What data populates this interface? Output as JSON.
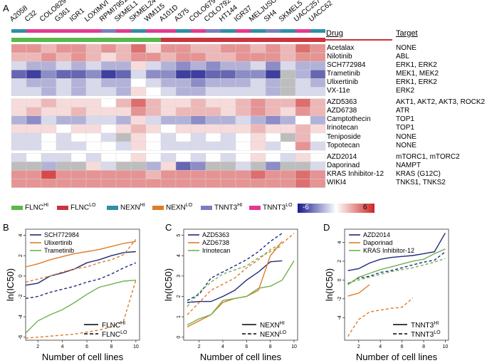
{
  "figure": {
    "panel_a": "A",
    "panel_b": "B",
    "panel_c": "C",
    "panel_d": "D"
  },
  "heatmap": {
    "cell_lines": [
      "A2058",
      "C32",
      "COLO829",
      "G361",
      "IGR1",
      "LOXIMVI",
      "RPMI7951",
      "SKMEL1",
      "SKMEL24",
      "WM115",
      "A101D",
      "A375",
      "COLO679",
      "COLO792",
      "HT144",
      "IGR37",
      "MELJUSO",
      "SH4",
      "SKMEL5",
      "UACC257",
      "UACC62"
    ],
    "drug_header": "Drug",
    "target_header": "Target",
    "group_colors": [
      "#2f8fa6",
      "#e5388e",
      "#e5388e",
      "#e5388e",
      "#e5388e",
      "#e5388e",
      "#7a7ec0",
      "#e5388e",
      "#2f8fa6",
      "#e5388e",
      "#e5388e",
      "#2f8fa6",
      "#e5388e",
      "#7a7ec0",
      "#2f8fa6",
      "#e5388e",
      "#2f8fa6",
      "#7a7ec0",
      "#2f8fa6",
      "#e5388e",
      "#2f8fa6"
    ],
    "flnc_colors": [
      "#59b849",
      "#59b849",
      "#59b849",
      "#59b849",
      "#59b849",
      "#59b849",
      "#59b849",
      "#59b849",
      "#59b849",
      "#59b849",
      "#c8343f",
      "#c8343f",
      "#c8343f",
      "#c8343f",
      "#c8343f",
      "#c8343f",
      "#c8343f",
      "#c8343f",
      "#c8343f",
      "#c8343f",
      "#c8343f"
    ],
    "rows": [
      {
        "drug": "Acetalax",
        "target": "NONE",
        "values": [
          3,
          3,
          2,
          3,
          3,
          2,
          3,
          2,
          4,
          1,
          3,
          3,
          2,
          2,
          3,
          3,
          2,
          3,
          2,
          4,
          3
        ]
      },
      {
        "drug": "Nilotinib",
        "target": "ABL",
        "values": [
          2,
          2,
          3,
          2,
          3,
          2,
          1,
          2,
          3,
          3,
          2,
          3,
          3,
          2,
          2,
          3,
          3,
          3,
          2,
          3,
          3
        ]
      },
      {
        "drug": "SCH772984",
        "target": "ERK1, ERK2",
        "values": [
          -1,
          -2,
          -2,
          -1,
          -2,
          -1,
          -2,
          -2,
          1,
          -1,
          -2,
          -3,
          -2,
          -3,
          -2,
          -2,
          -1,
          -3,
          -1,
          -2,
          -2
        ]
      },
      {
        "drug": "Trametinib",
        "target": "MEK1, MEK2",
        "values": [
          -4,
          -5,
          -3,
          -4,
          -4,
          -3,
          -5,
          -4,
          -1,
          -3,
          -3,
          -5,
          -5,
          -4,
          -4,
          -3,
          -3,
          -5,
          "na",
          -2,
          -4
        ]
      },
      {
        "drug": "Ulixertinib",
        "target": "ERK1, ERK2",
        "values": [
          -1,
          -2,
          -2,
          -1,
          -2,
          -1,
          -2,
          -2,
          0,
          -1,
          -2,
          -2,
          -3,
          -2,
          -2,
          -2,
          -1,
          -2,
          "na",
          -1,
          -2
        ]
      },
      {
        "drug": "VX-11e",
        "target": "ERK2",
        "values": [
          -1,
          -1,
          -2,
          -1,
          -2,
          -1,
          -1,
          -2,
          1,
          0,
          -1,
          -2,
          -2,
          -1,
          -1,
          -1,
          -1,
          -2,
          "na",
          -1,
          -1
        ]
      },
      {
        "drug": "AZD5363",
        "target": "AKT1, AKT2, AKT3, ROCK2",
        "values": [
          1,
          1,
          2,
          1,
          1,
          1,
          0,
          2,
          4,
          2,
          1,
          1,
          2,
          1,
          1,
          2,
          3,
          2,
          2,
          4,
          2
        ]
      },
      {
        "drug": "AZD6738",
        "target": "ATR",
        "values": [
          1,
          2,
          1,
          1,
          2,
          1,
          1,
          1,
          3,
          2,
          1,
          2,
          2,
          2,
          1,
          2,
          3,
          2,
          1,
          3,
          2
        ]
      },
      {
        "drug": "Camptothecin",
        "target": "TOP1",
        "values": [
          -2,
          -3,
          -1,
          -2,
          -2,
          -1,
          -1,
          -2,
          1,
          -1,
          -2,
          -2,
          -3,
          -2,
          -2,
          -1,
          -2,
          -3,
          -2,
          0,
          -2
        ]
      },
      {
        "drug": "Irinotecan",
        "target": "TOP1",
        "values": [
          1,
          1,
          1,
          0,
          1,
          1,
          0,
          1,
          2,
          1,
          0,
          1,
          1,
          1,
          1,
          1,
          2,
          1,
          1,
          2,
          1
        ]
      },
      {
        "drug": "Teniposide",
        "target": "NONE",
        "values": [
          -1,
          -1,
          0,
          -1,
          0,
          0,
          -1,
          "na",
          1,
          0,
          -1,
          0,
          -1,
          0,
          -1,
          0,
          1,
          0,
          "na",
          2,
          0
        ]
      },
      {
        "drug": "Topotecan",
        "target": "NONE",
        "values": [
          -1,
          -1,
          0,
          -1,
          -1,
          0,
          0,
          -1,
          1,
          0,
          -1,
          -1,
          -1,
          -1,
          -1,
          0,
          1,
          -1,
          0,
          3,
          -1
        ]
      },
      {
        "drug": "AZD2014",
        "target": "mTORC1, mTORC2",
        "values": [
          -1,
          0,
          -1,
          -1,
          0,
          -1,
          0,
          0,
          1,
          0,
          -1,
          0,
          -1,
          0,
          -1,
          0,
          1,
          0,
          -1,
          1,
          0
        ]
      },
      {
        "drug": "Daporinad",
        "target": "NAMPT",
        "values": [
          "na",
          "na",
          -2,
          "na",
          "na",
          1,
          -1,
          "na",
          "na",
          -2,
          1,
          -4,
          -3,
          "na",
          "na",
          -1,
          "na",
          -3,
          "na",
          "na",
          -1
        ]
      },
      {
        "drug": "KRAS Inhibitor-12",
        "target": "KRAS (G12C)",
        "values": [
          3,
          3,
          5,
          3,
          3,
          3,
          3,
          3,
          3,
          2,
          3,
          3,
          3,
          3,
          3,
          3,
          4,
          3,
          3,
          4,
          3
        ]
      },
      {
        "drug": "WIKI4",
        "target": "TNKS1, TNKS2",
        "values": [
          3,
          3,
          3,
          3,
          3,
          3,
          3,
          3,
          3,
          3,
          3,
          3,
          3,
          3,
          3,
          3,
          3,
          3,
          3,
          4,
          3
        ]
      }
    ]
  },
  "legend": {
    "items": [
      {
        "name": "FLNC",
        "sup": "HI",
        "color": "#59b849"
      },
      {
        "name": "FLNC",
        "sup": "LO",
        "color": "#c8343f"
      },
      {
        "name": "NEXN",
        "sup": "HI",
        "color": "#2f8fa6"
      },
      {
        "name": "NEXN",
        "sup": "LO",
        "color": "#e07b25"
      },
      {
        "name": "TNNT3",
        "sup": "HI",
        "color": "#7a7ec0"
      },
      {
        "name": "TNNT3",
        "sup": "LO",
        "color": "#e5388e"
      }
    ],
    "scale_min": "-6",
    "scale_max": "6"
  },
  "chart_data": [
    {
      "type": "line",
      "panel": "B",
      "xlabel": "Number of cell lines",
      "ylabel": "ln(IC50)",
      "xlim": [
        1,
        10.3
      ],
      "ylim": [
        -6.3,
        4.6
      ],
      "xticks": [
        2,
        4,
        6,
        8,
        10
      ],
      "yticks": [
        -6,
        -4,
        -2,
        0,
        2,
        4
      ],
      "series": [
        {
          "name": "SCH772984",
          "group": "FLNC HI",
          "color": "#1f2a7a",
          "dash": false,
          "x": [
            1,
            2,
            3,
            4,
            5,
            6,
            7,
            8,
            9,
            10
          ],
          "y": [
            -0.9,
            -0.7,
            0.0,
            0.3,
            0.7,
            1.3,
            1.6,
            2.0,
            2.3,
            2.4
          ]
        },
        {
          "name": "SCH772984",
          "group": "FLNC LO",
          "color": "#1f2a7a",
          "dash": true,
          "x": [
            1,
            2,
            3,
            4,
            5,
            6,
            7,
            8,
            9,
            10
          ],
          "y": [
            -2.2,
            -2.0,
            -1.6,
            -1.3,
            -1.0,
            -0.6,
            -0.3,
            0.2,
            0.8,
            1.3
          ]
        },
        {
          "name": "Ulixertinib",
          "group": "FLNC HI",
          "color": "#e07b25",
          "dash": false,
          "x": [
            1,
            2,
            3,
            4,
            5,
            6,
            7,
            8,
            9,
            10
          ],
          "y": [
            0.9,
            1.2,
            1.6,
            1.9,
            2.2,
            2.4,
            2.6,
            2.9,
            3.2,
            3.4
          ]
        },
        {
          "name": "Ulixertinib",
          "group": "FLNC LO",
          "color": "#e07b25",
          "dash": true,
          "x": [
            1,
            2,
            3,
            4,
            5,
            6,
            7,
            8,
            9,
            10
          ],
          "y": [
            -0.6,
            -0.3,
            0.0,
            0.4,
            0.7,
            0.9,
            1.3,
            1.6,
            2.1,
            3.6
          ]
        },
        {
          "name": "Trametinib",
          "group": "FLNC HI",
          "color": "#6fb24f",
          "dash": false,
          "x": [
            1,
            2,
            3,
            4,
            5,
            6,
            7,
            8,
            9,
            10
          ],
          "y": [
            -5.6,
            -4.4,
            -3.8,
            -3.3,
            -2.6,
            -1.8,
            -1.1,
            -0.8,
            -0.5,
            -0.4
          ]
        },
        {
          "name": "Trametinib",
          "group": "FLNC LO",
          "color": "#e07b25",
          "dash": true,
          "x": [
            1,
            2,
            3,
            4,
            5,
            6,
            7,
            8,
            9,
            10
          ],
          "y": [
            -6.1,
            -6.0,
            -5.9,
            -5.8,
            -5.7,
            -5.5,
            -5.3,
            -5.0,
            -4.4,
            -0.4
          ]
        }
      ],
      "legend_series": [
        "SCH772984",
        "Ulixertinib",
        "Trametinib"
      ],
      "line_legend": [
        {
          "label": "FLNC",
          "sup": "HI",
          "dash": false
        },
        {
          "label": "FLNC",
          "sup": "LO",
          "dash": true
        }
      ]
    },
    {
      "type": "line",
      "panel": "C",
      "xlabel": "Number of cell lines",
      "ylabel": "ln(IC50)",
      "xlim": [
        0.7,
        10.3
      ],
      "ylim": [
        -0.15,
        5.3
      ],
      "xticks": [
        2,
        4,
        6,
        8,
        10
      ],
      "yticks": [
        0,
        1,
        2,
        3,
        4,
        5
      ],
      "series": [
        {
          "name": "AZD5363",
          "group": "NEXN HI",
          "color": "#1f2a7a",
          "dash": false,
          "x": [
            1,
            2,
            3,
            4,
            5,
            6,
            7,
            8,
            9
          ],
          "y": [
            1.7,
            1.75,
            1.75,
            2.0,
            2.3,
            2.8,
            3.2,
            3.7,
            3.75
          ]
        },
        {
          "name": "AZD5363",
          "group": "NEXN LO",
          "color": "#1f2a7a",
          "dash": true,
          "x": [
            1,
            2,
            3,
            4,
            5,
            6,
            7,
            8,
            9
          ],
          "y": [
            1.8,
            2.1,
            2.9,
            3.2,
            3.5,
            3.8,
            4.2,
            4.7,
            5.1
          ]
        },
        {
          "name": "AZD6738",
          "group": "NEXN HI",
          "color": "#e07b25",
          "dash": false,
          "x": [
            1,
            2,
            3,
            4,
            5,
            6,
            7,
            8,
            9
          ],
          "y": [
            0.5,
            0.8,
            1.1,
            1.7,
            1.9,
            2.0,
            2.3,
            4.0,
            4.7
          ]
        },
        {
          "name": "AZD6738",
          "group": "NEXN LO",
          "color": "#e07b25",
          "dash": true,
          "x": [
            1,
            2,
            3,
            4,
            5,
            6,
            7,
            8,
            9,
            10
          ],
          "y": [
            1.1,
            1.7,
            2.3,
            2.6,
            2.9,
            3.4,
            3.8,
            4.3,
            4.6,
            5.1
          ]
        },
        {
          "name": "Irinotecan",
          "group": "NEXN HI",
          "color": "#6fb24f",
          "dash": false,
          "x": [
            1,
            2,
            3,
            4,
            5,
            6,
            7,
            8,
            9,
            10
          ],
          "y": [
            0.6,
            0.9,
            1.1,
            1.8,
            1.9,
            2.0,
            2.4,
            2.5,
            2.8,
            3.75
          ]
        },
        {
          "name": "Irinotecan",
          "group": "NEXN LO",
          "color": "#6fb24f",
          "dash": true,
          "x": [
            1,
            2,
            3,
            4,
            5,
            6,
            7,
            8,
            9
          ],
          "y": [
            1.5,
            2.2,
            2.7,
            3.1,
            3.3,
            3.5,
            3.9,
            4.2,
            4.5
          ]
        }
      ],
      "legend_series": [
        "AZD5363",
        "AZD6738",
        "Irinotecan"
      ],
      "line_legend": [
        {
          "label": "NEXN",
          "sup": "HI",
          "dash": false
        },
        {
          "label": "NEXN",
          "sup": "LO",
          "dash": true
        }
      ]
    },
    {
      "type": "line",
      "panel": "D",
      "xlabel": "Number of cell lines",
      "ylabel": "ln(IC50)",
      "xlim": [
        0.7,
        10.3
      ],
      "ylim": [
        -6.4,
        5.4
      ],
      "xticks": [
        2,
        4,
        6,
        8,
        10
      ],
      "yticks": [
        -4,
        -2,
        0,
        2,
        4
      ],
      "series": [
        {
          "name": "AZD2014",
          "group": "TNNT3 HI",
          "color": "#1f2a7a",
          "dash": false,
          "x": [
            1,
            2,
            3,
            4,
            5,
            6,
            7,
            8,
            9,
            10
          ],
          "y": [
            1.0,
            1.2,
            1.8,
            2.2,
            2.4,
            2.5,
            2.6,
            2.8,
            3.0,
            5.0
          ]
        },
        {
          "name": "AZD2014",
          "group": "TNNT3 LO",
          "color": "#1f2a7a",
          "dash": true,
          "x": [
            1,
            2,
            3,
            4,
            5,
            6,
            7,
            8,
            9,
            10
          ],
          "y": [
            -0.4,
            0.2,
            0.4,
            0.8,
            1.0,
            1.3,
            1.6,
            1.9,
            2.1,
            3.0
          ]
        },
        {
          "name": "Daporinad",
          "group": "TNNT3 HI",
          "color": "#e07b25",
          "dash": false,
          "x": [
            1,
            2,
            3
          ],
          "y": [
            -1.7,
            -1.4,
            -0.5
          ]
        },
        {
          "name": "Daporinad",
          "group": "TNNT3 LO",
          "color": "#e07b25",
          "dash": true,
          "x": [
            1,
            2,
            3,
            4,
            5,
            6,
            7
          ],
          "y": [
            -6.0,
            -4.2,
            -3.4,
            -3.2,
            -3.0,
            -2.9,
            -1.9
          ]
        },
        {
          "name": "KRAS Inhibitor-12",
          "group": "TNNT3 HI",
          "color": "#6fb24f",
          "dash": false,
          "x": [
            1,
            2,
            3,
            4,
            5,
            6,
            7,
            8,
            9,
            10
          ],
          "y": [
            -0.5,
            0.3,
            0.7,
            1.1,
            1.4,
            1.7,
            2.0,
            2.2,
            2.8,
            3.3
          ]
        },
        {
          "name": "KRAS Inhibitor-12",
          "group": "TNNT3 LO",
          "color": "#6fb24f",
          "dash": true,
          "x": [
            1,
            2,
            3,
            4,
            5,
            6,
            7,
            8,
            9,
            10
          ],
          "y": [
            -0.3,
            0.0,
            0.3,
            0.6,
            0.9,
            1.1,
            1.3,
            1.6,
            1.9,
            2.3
          ]
        }
      ],
      "legend_series": [
        "AZD2014",
        "Daporinad",
        "KRAS Inhibitor-12"
      ],
      "line_legend": [
        {
          "label": "TNNT3",
          "sup": "HI",
          "dash": false
        },
        {
          "label": "TNNT3",
          "sup": "LO",
          "dash": true
        }
      ]
    }
  ]
}
